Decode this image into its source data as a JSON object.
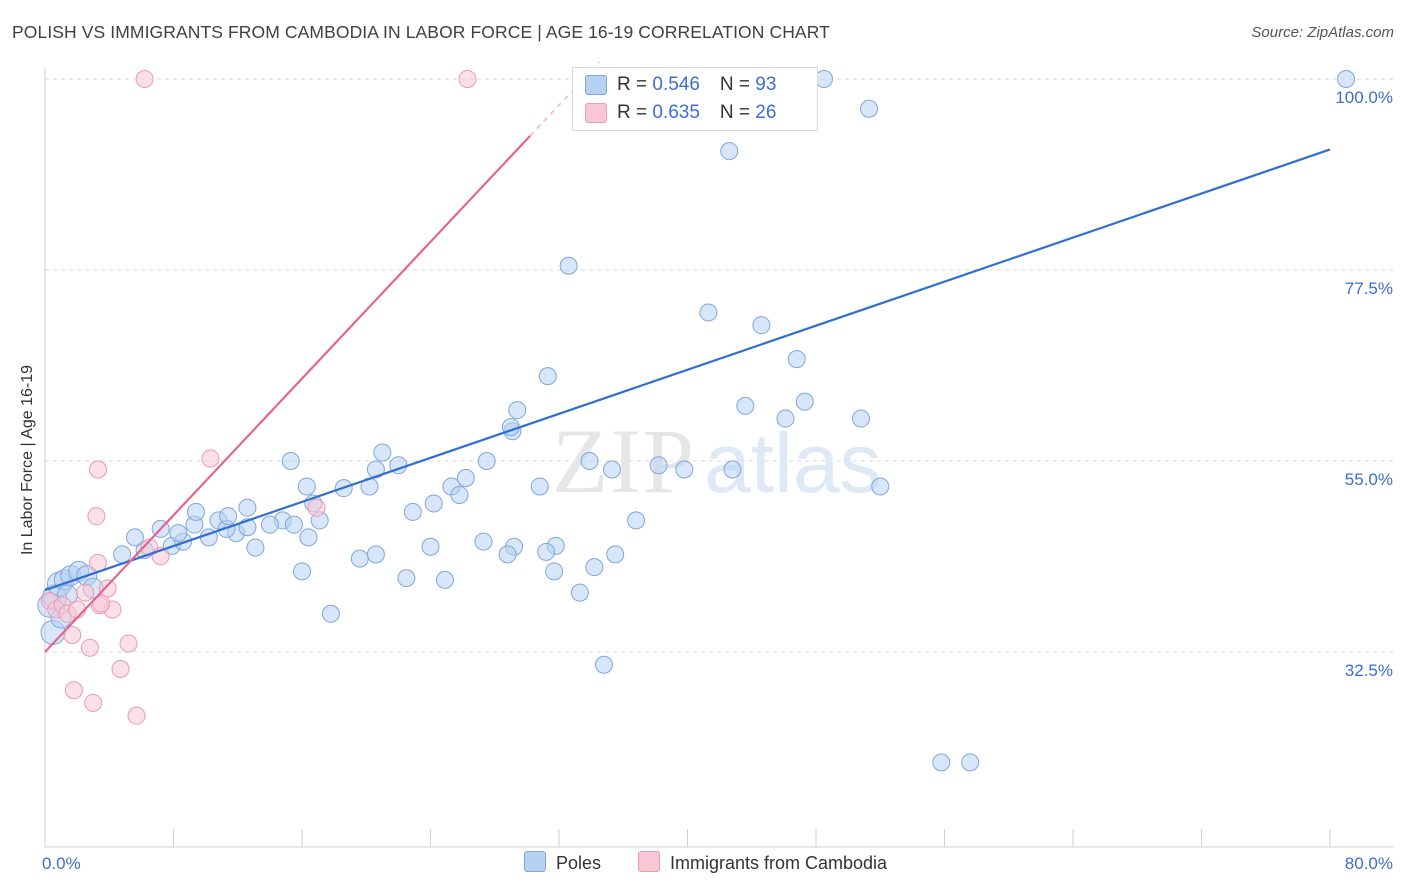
{
  "title": "POLISH VS IMMIGRANTS FROM CAMBODIA IN LABOR FORCE | AGE 16-19 CORRELATION CHART",
  "source_prefix": "Source: ",
  "source_name": "ZipAtlas.com",
  "watermark": {
    "zip": "ZIP",
    "atlas": "atlas"
  },
  "colors": {
    "blue_fill": "#b7d1f3",
    "blue_stroke": "#7fa6dc",
    "blue_line": "#2f6fd0",
    "pink_fill": "#f8c6d5",
    "pink_stroke": "#ea9ab4",
    "pink_line": "#e4648f",
    "axis_text": "#3a6fd0",
    "grid": "#d8d8d8"
  },
  "legend": {
    "rows": [
      {
        "r_label": "R = ",
        "r_value": "0.546",
        "n_label": "N = ",
        "n_value": "93"
      },
      {
        "r_label": "R = ",
        "r_value": "0.635",
        "n_label": "N = ",
        "n_value": "26"
      }
    ]
  },
  "bottom_legend": [
    "Poles",
    "Immigrants from Cambodia"
  ],
  "chart_data": {
    "type": "scatter",
    "title": "POLISH VS IMMIGRANTS FROM CAMBODIA IN LABOR FORCE | AGE 16-19 CORRELATION CHART",
    "xlabel": "",
    "ylabel": "In Labor Force | Age 16-19",
    "xlim": [
      0,
      80
    ],
    "ylim": [
      14,
      102
    ],
    "x_tick_labels": [
      "0.0%",
      "80.0%"
    ],
    "y_tick_values": [
      32.5,
      55.0,
      77.5,
      100.0
    ],
    "y_tick_labels": [
      "32.5%",
      "55.0%",
      "77.5%",
      "100.0%"
    ],
    "grid": "horizontal dashed",
    "legend_position": "top-center",
    "series": [
      {
        "name": "Poles",
        "R": 0.546,
        "N": 93,
        "trendline": [
          [
            0.0,
            39.8
          ],
          [
            80.0,
            91.7
          ]
        ],
        "points": [
          [
            0.3,
            38.0
          ],
          [
            0.6,
            39.0
          ],
          [
            0.9,
            40.5
          ],
          [
            1.2,
            41.0
          ],
          [
            1.6,
            41.5
          ],
          [
            2.1,
            42.0
          ],
          [
            2.6,
            41.5
          ],
          [
            1.4,
            39.2
          ],
          [
            3.0,
            40.0
          ],
          [
            0.5,
            34.8
          ],
          [
            1.0,
            36.5
          ],
          [
            4.8,
            44.0
          ],
          [
            6.2,
            44.5
          ],
          [
            7.2,
            47.0
          ],
          [
            7.9,
            45.0
          ],
          [
            8.6,
            45.5
          ],
          [
            9.3,
            47.5
          ],
          [
            10.2,
            46.0
          ],
          [
            10.8,
            48.0
          ],
          [
            11.9,
            46.5
          ],
          [
            11.3,
            47.0
          ],
          [
            12.6,
            47.2
          ],
          [
            13.1,
            44.8
          ],
          [
            14.8,
            48.0
          ],
          [
            15.3,
            55.0
          ],
          [
            16.3,
            52.0
          ],
          [
            16.7,
            50.0
          ],
          [
            17.1,
            48.0
          ],
          [
            18.6,
            51.8
          ],
          [
            20.2,
            52.0
          ],
          [
            21.0,
            56.0
          ],
          [
            20.6,
            54.0
          ],
          [
            22.0,
            54.5
          ],
          [
            22.9,
            49.0
          ],
          [
            24.2,
            50.0
          ],
          [
            25.3,
            52.0
          ],
          [
            26.2,
            53.0
          ],
          [
            25.8,
            51.0
          ],
          [
            27.5,
            55.0
          ],
          [
            29.1,
            58.5
          ],
          [
            29.4,
            61.0
          ],
          [
            29.0,
            59.0
          ],
          [
            31.3,
            65.0
          ],
          [
            30.8,
            52.0
          ],
          [
            32.6,
            78.0
          ],
          [
            33.9,
            55.0
          ],
          [
            35.3,
            54.0
          ],
          [
            36.8,
            48.0
          ],
          [
            38.2,
            54.5
          ],
          [
            39.8,
            54.0
          ],
          [
            41.3,
            72.5
          ],
          [
            42.8,
            54.0
          ],
          [
            43.6,
            61.5
          ],
          [
            44.6,
            71.0
          ],
          [
            46.1,
            60.0
          ],
          [
            46.8,
            67.0
          ],
          [
            47.3,
            62.0
          ],
          [
            42.6,
            91.5
          ],
          [
            51.3,
            96.5
          ],
          [
            52.0,
            52.0
          ],
          [
            44.1,
            97.0
          ],
          [
            50.8,
            60.0
          ],
          [
            55.8,
            19.5
          ],
          [
            57.6,
            19.5
          ],
          [
            31.8,
            45.0
          ],
          [
            31.2,
            44.3
          ],
          [
            29.2,
            44.9
          ],
          [
            27.3,
            45.5
          ],
          [
            24.0,
            44.9
          ],
          [
            24.9,
            41.0
          ],
          [
            22.5,
            41.2
          ],
          [
            28.8,
            44.0
          ],
          [
            31.7,
            42.0
          ],
          [
            33.3,
            39.5
          ],
          [
            34.2,
            42.5
          ],
          [
            34.8,
            31.0
          ],
          [
            35.5,
            44.0
          ],
          [
            40.0,
            100.0
          ],
          [
            47.0,
            100.0
          ],
          [
            48.5,
            100.0
          ],
          [
            81.0,
            100.0
          ],
          [
            19.6,
            43.5
          ],
          [
            20.6,
            44.0
          ],
          [
            16.4,
            46.0
          ],
          [
            15.5,
            47.5
          ],
          [
            14.0,
            47.5
          ],
          [
            12.6,
            49.5
          ],
          [
            11.4,
            48.5
          ],
          [
            9.4,
            49.0
          ],
          [
            8.3,
            46.5
          ],
          [
            5.6,
            46.0
          ],
          [
            16.0,
            42.0
          ],
          [
            17.8,
            37.0
          ]
        ]
      },
      {
        "name": "Immigrants from Cambodia",
        "R": 0.635,
        "N": 26,
        "trendline": [
          [
            0.0,
            32.5
          ],
          [
            30.2,
            93.3
          ]
        ],
        "points": [
          [
            0.3,
            38.5
          ],
          [
            0.7,
            37.5
          ],
          [
            1.1,
            38.0
          ],
          [
            1.4,
            37.0
          ],
          [
            2.0,
            37.5
          ],
          [
            2.5,
            39.5
          ],
          [
            3.3,
            43.0
          ],
          [
            3.9,
            40.0
          ],
          [
            4.2,
            37.5
          ],
          [
            5.2,
            33.5
          ],
          [
            5.7,
            25.0
          ],
          [
            6.5,
            44.8
          ],
          [
            7.2,
            43.8
          ],
          [
            3.4,
            38.0
          ],
          [
            2.8,
            33.0
          ],
          [
            1.8,
            28.0
          ],
          [
            3.0,
            26.5
          ],
          [
            4.7,
            30.5
          ],
          [
            3.2,
            48.5
          ],
          [
            3.3,
            54.0
          ],
          [
            10.3,
            55.3
          ],
          [
            16.9,
            49.5
          ],
          [
            6.2,
            100.0
          ],
          [
            26.3,
            100.0
          ],
          [
            1.7,
            34.5
          ],
          [
            3.5,
            38.2
          ]
        ]
      }
    ]
  }
}
